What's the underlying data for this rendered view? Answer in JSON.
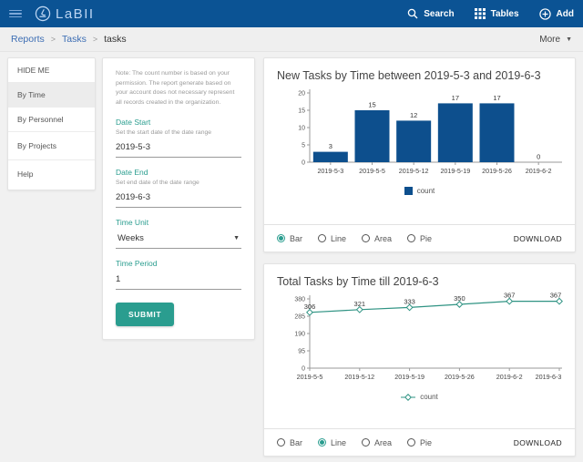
{
  "header": {
    "logo_text": "LaBII",
    "nav": {
      "search": "Search",
      "tables": "Tables",
      "add": "Add"
    }
  },
  "breadcrumb": {
    "items": [
      "Reports",
      "Tasks",
      "tasks"
    ],
    "more_label": "More"
  },
  "sidebar": {
    "items": [
      {
        "label": "HIDE ME"
      },
      {
        "label": "By Time",
        "selected": true
      },
      {
        "label": "By Personnel"
      },
      {
        "label": "By Projects"
      },
      {
        "label": "Help"
      }
    ]
  },
  "form": {
    "note": "Note: The count number is based on your permission. The report generate based on your account does not necessary represent all records created in the organization.",
    "fields": [
      {
        "label": "Date Start",
        "help": "Set the start date of the date range",
        "value": "2019-5-3"
      },
      {
        "label": "Date End",
        "help": "Set end date of the date range",
        "value": "2019-6-3"
      },
      {
        "label": "Time Unit",
        "value": "Weeks"
      },
      {
        "label": "Time Period",
        "value": "1"
      }
    ],
    "submit_label": "SUBMIT"
  },
  "chart_data": [
    {
      "type": "bar",
      "title": "New Tasks by Time between 2019-5-3 and 2019-6-3",
      "categories": [
        "2019-5-3",
        "2019-5-5",
        "2019-5-12",
        "2019-5-19",
        "2019-5-26",
        "2019-6-2"
      ],
      "values": [
        3,
        15,
        12,
        17,
        17,
        0
      ],
      "series_name": "count",
      "ylim": [
        0,
        20
      ],
      "yticks": [
        0,
        5,
        10,
        15,
        20
      ],
      "color": "#0d4f8d",
      "grid": false,
      "legend_position": "bottom",
      "chart_type_options": [
        "Bar",
        "Line",
        "Area",
        "Pie"
      ],
      "selected_type": "Bar",
      "download_label": "DOWNLOAD"
    },
    {
      "type": "line",
      "title": "Total Tasks by Time till 2019-6-3",
      "categories": [
        "2019-5-5",
        "2019-5-12",
        "2019-5-19",
        "2019-5-26",
        "2019-6-2",
        "2019-6-3"
      ],
      "values": [
        306,
        321,
        333,
        350,
        367,
        367
      ],
      "series_name": "count",
      "ylim": [
        0,
        380
      ],
      "yticks": [
        0,
        95,
        190,
        285,
        380
      ],
      "color": "#2f9383",
      "grid": false,
      "legend_position": "bottom",
      "chart_type_options": [
        "Bar",
        "Line",
        "Area",
        "Pie"
      ],
      "selected_type": "Line",
      "download_label": "DOWNLOAD"
    }
  ],
  "colors": {
    "header_bg": "#0b5394",
    "accent_teal": "#2a9d8f",
    "bar_blue": "#0d4f8d",
    "line_teal": "#2f9383",
    "link_blue": "#3d6eb4"
  }
}
